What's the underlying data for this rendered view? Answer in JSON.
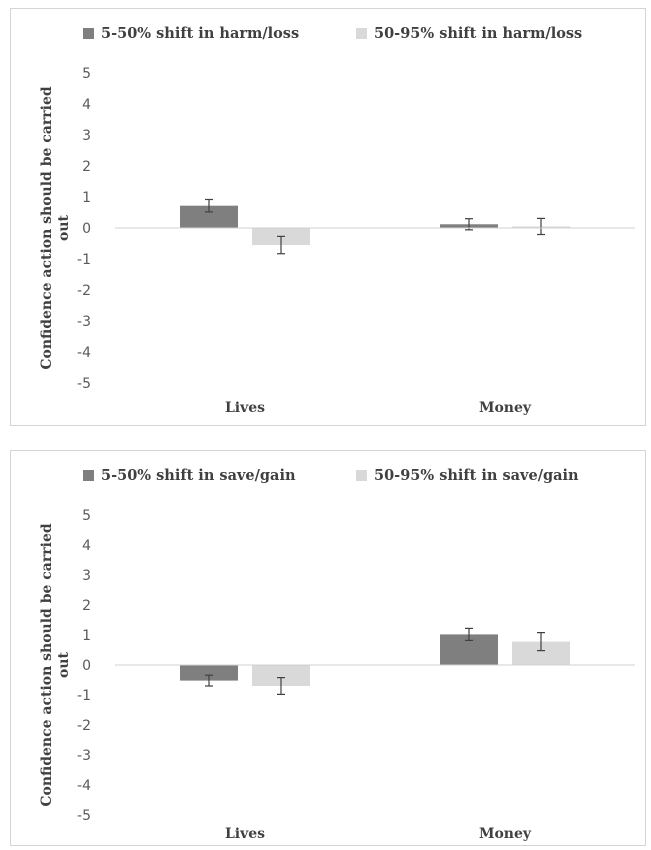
{
  "chart_data": [
    {
      "type": "bar",
      "title": "",
      "ylabel": "Confidence action should be carried out",
      "ylim": [
        -5,
        5
      ],
      "yticks": [
        5,
        4,
        3,
        2,
        1,
        0,
        -1,
        -2,
        -3,
        -4,
        -5
      ],
      "categories": [
        "Lives",
        "Money"
      ],
      "legend_position": "top",
      "grid": false,
      "series": [
        {
          "name": "5-50% shift in harm/loss",
          "color": "#7f7f7f",
          "values": [
            0.72,
            0.12
          ],
          "errors": [
            0.2,
            0.18
          ]
        },
        {
          "name": "50-95% shift in harm/loss",
          "color": "#d9d9d9",
          "values": [
            -0.55,
            0.05
          ],
          "errors": [
            0.28,
            0.26
          ]
        }
      ]
    },
    {
      "type": "bar",
      "title": "",
      "ylabel": "Confidence action should be carried out",
      "ylim": [
        -5,
        5
      ],
      "yticks": [
        5,
        4,
        3,
        2,
        1,
        0,
        -1,
        -2,
        -3,
        -4,
        -5
      ],
      "categories": [
        "Lives",
        "Money"
      ],
      "legend_position": "top",
      "grid": false,
      "series": [
        {
          "name": "5-50% shift in save/gain",
          "color": "#7f7f7f",
          "values": [
            -0.52,
            1.02
          ],
          "errors": [
            0.18,
            0.2
          ]
        },
        {
          "name": "50-95% shift in save/gain",
          "color": "#d9d9d9",
          "values": [
            -0.7,
            0.78
          ],
          "errors": [
            0.28,
            0.3
          ]
        }
      ]
    }
  ]
}
